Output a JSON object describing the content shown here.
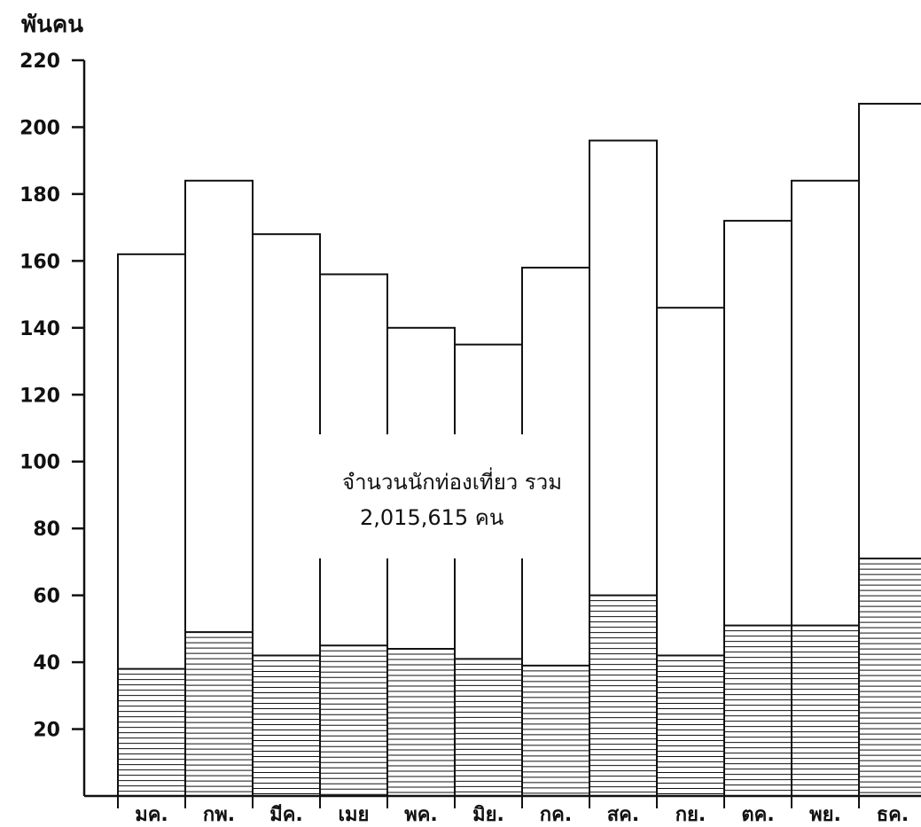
{
  "chart_data": {
    "type": "bar",
    "ylabel": "พันคน",
    "ylim": [
      0,
      220
    ],
    "yticks": [
      20,
      40,
      60,
      80,
      100,
      120,
      140,
      160,
      180,
      200,
      220
    ],
    "categories": [
      "มค.",
      "กพ.",
      "มีค.",
      "เมย",
      "พค.",
      "มิย.",
      "กค.",
      "สค.",
      "กย.",
      "ตค.",
      "พย.",
      "ธค."
    ],
    "series": [
      {
        "values": [
          162,
          184,
          168,
          156,
          140,
          135,
          158,
          196,
          146,
          172,
          184,
          207
        ]
      },
      {
        "values": [
          38,
          49,
          42,
          45,
          44,
          41,
          39,
          60,
          42,
          51,
          51,
          71
        ]
      }
    ],
    "annotation": {
      "line1": "จำนวนนักท่องเที่ยว รวม",
      "line2": "2,015,615 คน"
    },
    "grid": false,
    "colors": {
      "ink": "#111111",
      "background": "#ffffff"
    }
  }
}
